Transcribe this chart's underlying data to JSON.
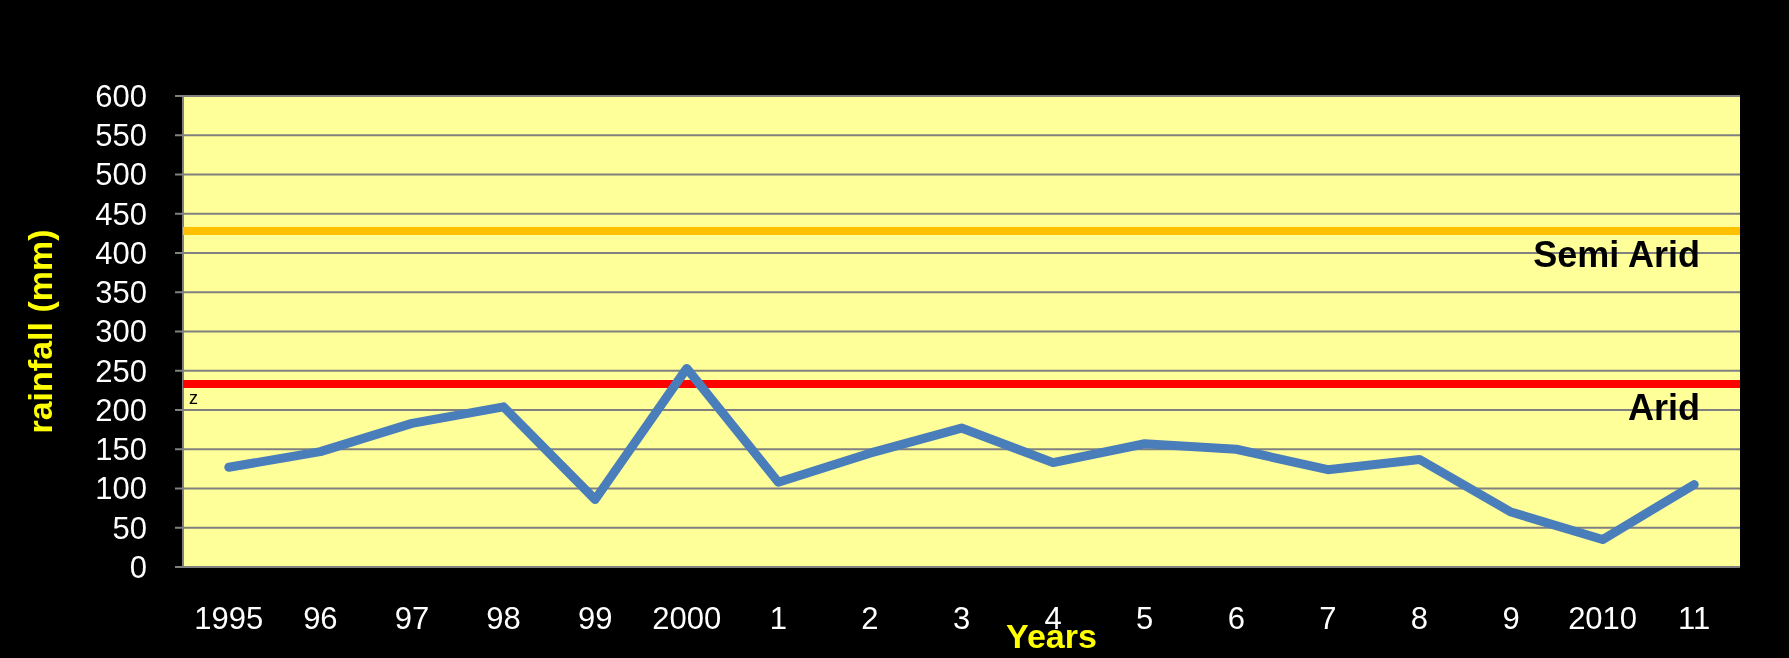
{
  "chart_data": {
    "type": "line",
    "xlabel": "Years",
    "ylabel": "rainfall (mm)",
    "categories": [
      "1995",
      "96",
      "97",
      "98",
      "99",
      "2000",
      "1",
      "2",
      "3",
      "4",
      "5",
      "6",
      "7",
      "8",
      "9",
      "2010",
      "11"
    ],
    "series": [
      {
        "color": "#4a7ebb",
        "values": [
          127,
          147,
          183,
          204,
          86,
          253,
          108,
          145,
          177,
          133,
          157,
          150,
          124,
          137,
          70,
          35,
          105
        ]
      }
    ],
    "ylim": [
      0,
      600
    ],
    "yticks": [
      0,
      50,
      100,
      150,
      200,
      250,
      300,
      350,
      400,
      450,
      500,
      550,
      600
    ],
    "grid": "y",
    "marker": "none",
    "line_style": "solid",
    "ref_lines": [
      {
        "axis": "y",
        "value": 428,
        "label": "Semi Arid",
        "color": "#ffc000"
      },
      {
        "axis": "y",
        "value": 233,
        "label": "Arid",
        "color": "#ff0000"
      }
    ],
    "annotations": [
      "z"
    ]
  }
}
